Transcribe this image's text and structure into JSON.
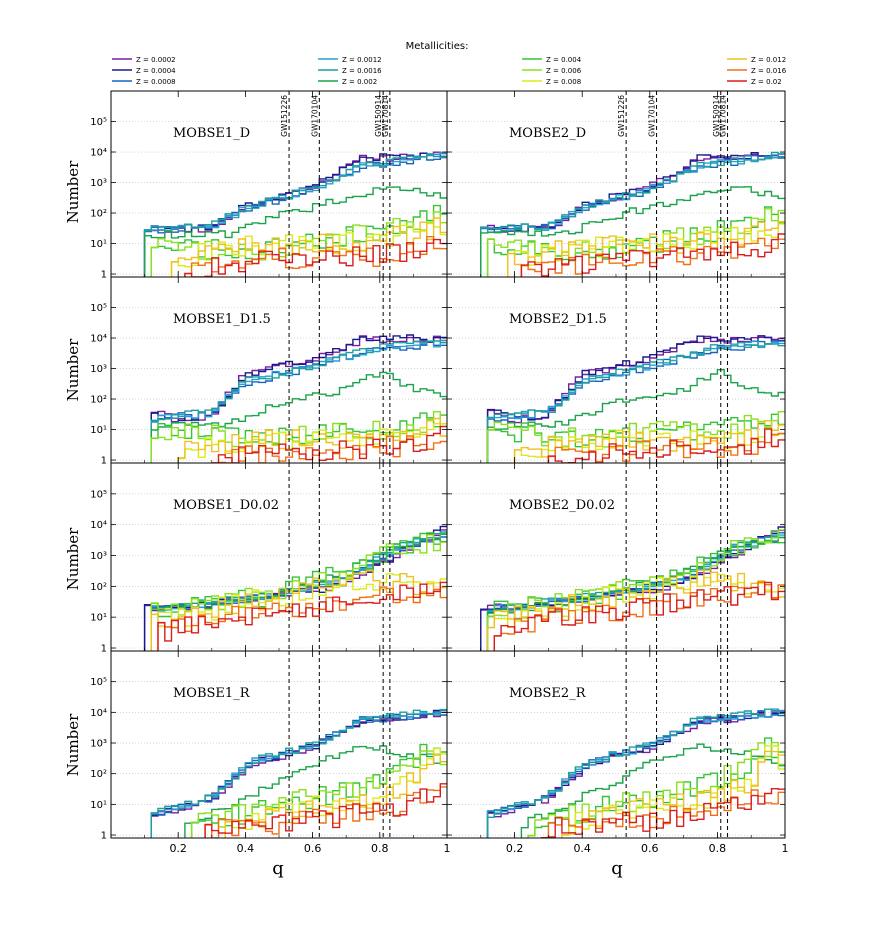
{
  "figure": {
    "legend_title": "Metallicities:",
    "xlabel": "q",
    "ylabel": "Number"
  },
  "chart_data": {
    "type": "histogram",
    "description_axes": {
      "x": {
        "label": "q",
        "range": [
          0.0,
          1.0
        ],
        "ticks": [
          0.2,
          0.4,
          0.6,
          0.8,
          1.0
        ],
        "tick_labels": [
          "0.2",
          "0.4",
          "0.6",
          "0.8",
          "1"
        ]
      },
      "y": {
        "label": "Number",
        "scale": "log",
        "range": [
          0.8,
          1000000
        ],
        "ticks": [
          1,
          10,
          100,
          1000,
          10000,
          100000
        ],
        "tick_labels": [
          "1",
          "10¹",
          "10²",
          "10³",
          "10⁴",
          "10⁵"
        ]
      }
    },
    "legend": [
      {
        "label": "Z = 0.0002",
        "color": "#7b1fa2"
      },
      {
        "label": "Z = 0.0004",
        "color": "#1a1a8c"
      },
      {
        "label": "Z = 0.0008",
        "color": "#1565c0"
      },
      {
        "label": "Z = 0.0012",
        "color": "#26a0d0"
      },
      {
        "label": "Z = 0.0016",
        "color": "#1f9e9e"
      },
      {
        "label": "Z = 0.002",
        "color": "#1aa34a"
      },
      {
        "label": "Z = 0.004",
        "color": "#35c435"
      },
      {
        "label": "Z = 0.006",
        "color": "#88e01e"
      },
      {
        "label": "Z = 0.008",
        "color": "#dcea1a"
      },
      {
        "label": "Z = 0.012",
        "color": "#f0c020"
      },
      {
        "label": "Z = 0.016",
        "color": "#f07018"
      },
      {
        "label": "Z = 0.02",
        "color": "#d81e1e"
      }
    ],
    "events": [
      {
        "name": "GW151226",
        "q": 0.53
      },
      {
        "name": "GW170104",
        "q": 0.62
      },
      {
        "name": "GW150914",
        "q": 0.81
      },
      {
        "name": "GW170814",
        "q": 0.83
      }
    ],
    "panels": [
      {
        "label": "MOBSE1_D",
        "row": 0,
        "col": 0,
        "series_approx": [
          {
            "z": "0.0002",
            "start": 0.1,
            "points": [
              [
                0.1,
                20
              ],
              [
                0.3,
                30
              ],
              [
                0.4,
                150
              ],
              [
                0.6,
                700
              ],
              [
                0.75,
                6000
              ],
              [
                1.0,
                8000
              ]
            ]
          },
          {
            "z": "0.004",
            "start": 0.1,
            "points": [
              [
                0.1,
                5
              ],
              [
                0.3,
                10
              ],
              [
                0.5,
                30
              ],
              [
                0.7,
                60
              ],
              [
                1.0,
                100
              ]
            ]
          },
          {
            "z": "0.02",
            "start": 0.15,
            "points": [
              [
                0.15,
                1
              ],
              [
                0.5,
                3
              ],
              [
                1.0,
                8
              ]
            ]
          }
        ]
      },
      {
        "label": "MOBSE2_D",
        "row": 0,
        "col": 1
      },
      {
        "label": "MOBSE1_D1.5",
        "row": 1,
        "col": 0
      },
      {
        "label": "MOBSE2_D1.5",
        "row": 1,
        "col": 1
      },
      {
        "label": "MOBSE1_D0.02",
        "row": 2,
        "col": 0
      },
      {
        "label": "MOBSE2_D0.02",
        "row": 2,
        "col": 1
      },
      {
        "label": "MOBSE1_R",
        "row": 3,
        "col": 0
      },
      {
        "label": "MOBSE2_R",
        "row": 3,
        "col": 1
      }
    ]
  }
}
